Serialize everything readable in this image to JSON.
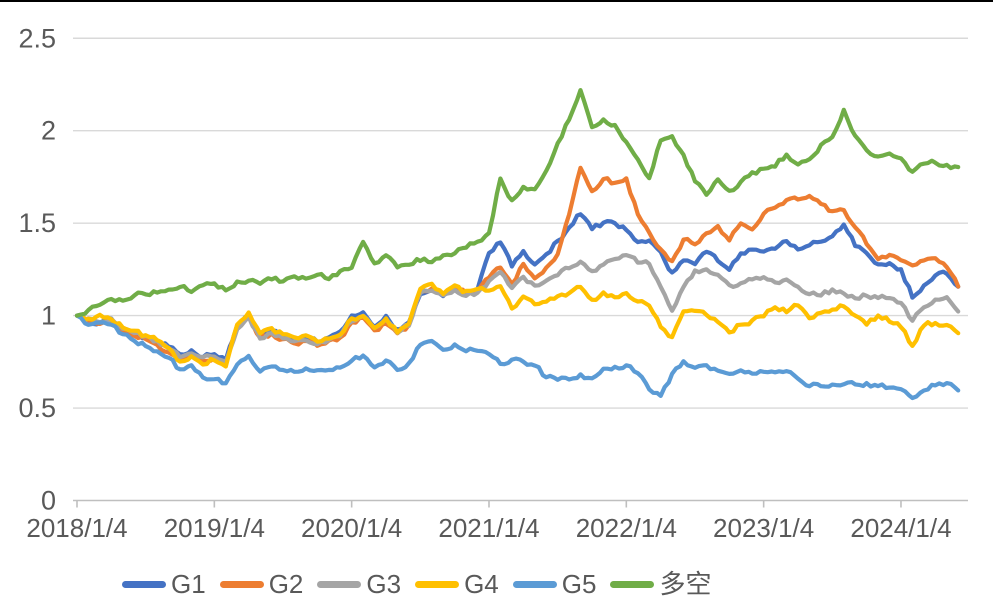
{
  "chart_data": {
    "type": "line",
    "title": "",
    "xlabel": "",
    "ylabel": "",
    "x_unit": "months since 2018/1/4, monthly points",
    "x_tick_labels": [
      "2018/1/4",
      "2019/1/4",
      "2020/1/4",
      "2021/1/4",
      "2022/1/4",
      "2023/1/4",
      "2024/1/4"
    ],
    "y_tick_labels": [
      "0",
      "0.5",
      "1",
      "1.5",
      "2",
      "2.5"
    ],
    "y_ticks": [
      0,
      0.5,
      1,
      1.5,
      2,
      2.5
    ],
    "ylim": [
      0,
      2.5
    ],
    "grid": "horizontal",
    "legend_position": "bottom",
    "noise_amp": 0.012,
    "series": [
      {
        "name": "G1",
        "color": "#4472C4",
        "values": [
          1.0,
          0.97,
          0.96,
          0.98,
          0.93,
          0.9,
          0.88,
          0.86,
          0.83,
          0.79,
          0.81,
          0.78,
          0.79,
          0.76,
          0.94,
          1.0,
          0.89,
          0.92,
          0.89,
          0.87,
          0.88,
          0.86,
          0.88,
          0.91,
          1.0,
          1.02,
          0.94,
          1.0,
          0.92,
          0.96,
          1.12,
          1.14,
          1.11,
          1.14,
          1.12,
          1.14,
          1.34,
          1.4,
          1.27,
          1.35,
          1.28,
          1.33,
          1.4,
          1.48,
          1.55,
          1.47,
          1.5,
          1.5,
          1.46,
          1.4,
          1.41,
          1.34,
          1.23,
          1.3,
          1.28,
          1.35,
          1.3,
          1.25,
          1.34,
          1.36,
          1.35,
          1.36,
          1.4,
          1.36,
          1.38,
          1.4,
          1.43,
          1.49,
          1.38,
          1.34,
          1.28,
          1.28,
          1.25,
          1.1,
          1.16,
          1.22,
          1.23,
          1.16
        ]
      },
      {
        "name": "G2",
        "color": "#ED7D31",
        "values": [
          1.0,
          0.97,
          0.95,
          0.97,
          0.92,
          0.89,
          0.87,
          0.84,
          0.8,
          0.76,
          0.78,
          0.75,
          0.77,
          0.74,
          0.95,
          1.0,
          0.88,
          0.9,
          0.87,
          0.85,
          0.86,
          0.84,
          0.86,
          0.88,
          0.96,
          0.99,
          0.92,
          0.96,
          0.9,
          0.95,
          1.13,
          1.15,
          1.12,
          1.15,
          1.12,
          1.13,
          1.21,
          1.26,
          1.17,
          1.28,
          1.2,
          1.26,
          1.33,
          1.55,
          1.8,
          1.67,
          1.74,
          1.72,
          1.74,
          1.55,
          1.45,
          1.36,
          1.29,
          1.41,
          1.39,
          1.44,
          1.48,
          1.41,
          1.5,
          1.47,
          1.55,
          1.58,
          1.62,
          1.63,
          1.65,
          1.6,
          1.56,
          1.57,
          1.48,
          1.39,
          1.3,
          1.33,
          1.3,
          1.27,
          1.3,
          1.31,
          1.26,
          1.16
        ]
      },
      {
        "name": "G3",
        "color": "#A5A5A5",
        "values": [
          1.0,
          0.98,
          0.96,
          0.98,
          0.93,
          0.91,
          0.89,
          0.86,
          0.82,
          0.78,
          0.8,
          0.77,
          0.78,
          0.75,
          0.93,
          0.99,
          0.88,
          0.91,
          0.88,
          0.86,
          0.87,
          0.85,
          0.87,
          0.89,
          0.97,
          1.0,
          0.93,
          0.98,
          0.91,
          0.95,
          1.12,
          1.14,
          1.11,
          1.14,
          1.11,
          1.12,
          1.19,
          1.24,
          1.15,
          1.21,
          1.16,
          1.19,
          1.22,
          1.26,
          1.29,
          1.24,
          1.28,
          1.31,
          1.33,
          1.29,
          1.28,
          1.15,
          1.03,
          1.16,
          1.24,
          1.25,
          1.22,
          1.16,
          1.18,
          1.2,
          1.21,
          1.18,
          1.2,
          1.16,
          1.12,
          1.11,
          1.14,
          1.12,
          1.09,
          1.11,
          1.1,
          1.1,
          1.07,
          0.97,
          1.05,
          1.09,
          1.1,
          1.02
        ]
      },
      {
        "name": "G4",
        "color": "#FFC000",
        "values": [
          1.0,
          0.98,
          1.0,
          0.98,
          0.94,
          0.92,
          0.89,
          0.87,
          0.83,
          0.75,
          0.78,
          0.74,
          0.76,
          0.73,
          0.95,
          1.02,
          0.9,
          0.93,
          0.9,
          0.88,
          0.89,
          0.86,
          0.88,
          0.9,
          0.98,
          1.0,
          0.93,
          0.98,
          0.91,
          0.96,
          1.14,
          1.17,
          1.12,
          1.16,
          1.13,
          1.14,
          1.14,
          1.16,
          1.04,
          1.1,
          1.06,
          1.08,
          1.1,
          1.12,
          1.16,
          1.08,
          1.12,
          1.1,
          1.12,
          1.08,
          1.05,
          0.94,
          0.88,
          1.02,
          1.03,
          1.0,
          0.97,
          0.91,
          0.95,
          0.97,
          1.0,
          1.04,
          1.02,
          1.06,
          0.99,
          1.02,
          1.03,
          1.05,
          1.0,
          0.95,
          1.0,
          0.97,
          0.94,
          0.84,
          0.95,
          0.96,
          0.95,
          0.9
        ]
      },
      {
        "name": "G5",
        "color": "#5B9BD5",
        "values": [
          1.0,
          0.95,
          0.96,
          0.95,
          0.9,
          0.86,
          0.84,
          0.81,
          0.77,
          0.71,
          0.73,
          0.67,
          0.66,
          0.63,
          0.74,
          0.78,
          0.7,
          0.73,
          0.71,
          0.7,
          0.71,
          0.7,
          0.71,
          0.72,
          0.76,
          0.78,
          0.72,
          0.76,
          0.71,
          0.74,
          0.84,
          0.86,
          0.82,
          0.84,
          0.81,
          0.81,
          0.79,
          0.74,
          0.76,
          0.75,
          0.73,
          0.67,
          0.65,
          0.66,
          0.68,
          0.66,
          0.71,
          0.72,
          0.73,
          0.69,
          0.6,
          0.57,
          0.68,
          0.75,
          0.72,
          0.73,
          0.7,
          0.68,
          0.7,
          0.69,
          0.7,
          0.69,
          0.7,
          0.66,
          0.62,
          0.62,
          0.63,
          0.63,
          0.63,
          0.63,
          0.62,
          0.61,
          0.6,
          0.55,
          0.6,
          0.62,
          0.63,
          0.6
        ]
      },
      {
        "name": "多空",
        "color": "#70AD47",
        "values": [
          1.0,
          1.03,
          1.06,
          1.09,
          1.08,
          1.11,
          1.12,
          1.12,
          1.14,
          1.16,
          1.13,
          1.16,
          1.17,
          1.14,
          1.18,
          1.19,
          1.17,
          1.2,
          1.19,
          1.21,
          1.2,
          1.22,
          1.2,
          1.24,
          1.26,
          1.4,
          1.28,
          1.33,
          1.26,
          1.28,
          1.3,
          1.29,
          1.33,
          1.34,
          1.37,
          1.4,
          1.45,
          1.74,
          1.62,
          1.7,
          1.68,
          1.78,
          1.93,
          2.06,
          2.22,
          2.02,
          2.06,
          2.03,
          1.94,
          1.85,
          1.74,
          1.95,
          1.97,
          1.87,
          1.73,
          1.65,
          1.74,
          1.67,
          1.72,
          1.77,
          1.79,
          1.81,
          1.87,
          1.82,
          1.84,
          1.92,
          1.97,
          2.11,
          1.97,
          1.89,
          1.86,
          1.88,
          1.85,
          1.78,
          1.82,
          1.83,
          1.81,
          1.8
        ]
      }
    ]
  }
}
